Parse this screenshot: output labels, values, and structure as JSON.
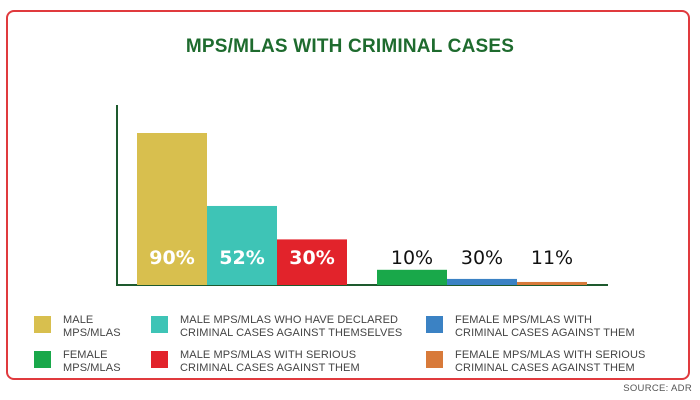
{
  "chart_data": {
    "type": "bar",
    "title": "MPS/MLAS WITH CRIMINAL CASES",
    "ylim": [
      0,
      100
    ],
    "grid": false,
    "legend_position": "bottom",
    "categories": [
      "MALE MPS/MLAS",
      "MALE MPS/MLAS WHO HAVE DECLARED CRIMINAL CASES AGAINST THEMSELVES",
      "MALE MPS/MLAS WITH SERIOUS CRIMINAL CASES AGAINST THEM",
      "FEMALE MPS/MLAS",
      "FEMALE MPS/MLAS WITH CRIMINAL CASES AGAINST THEM",
      "FEMALE MPS/MLAS WITH SERIOUS CRIMINAL CASES AGAINST THEM"
    ],
    "values": [
      90,
      52,
      30,
      10,
      30,
      11
    ],
    "data_labels": [
      "90%",
      "52%",
      "30%",
      "10%",
      "30%",
      "11%"
    ],
    "bar_heights_percent": [
      100,
      52,
      30,
      10,
      4,
      2
    ],
    "colors": [
      "#d8bf4e",
      "#3ec4b6",
      "#e2232b",
      "#19a84a",
      "#3b82c4",
      "#d87a3a"
    ],
    "label_colors": [
      "#ffffff",
      "#ffffff",
      "#ffffff",
      "#111111",
      "#111111",
      "#111111"
    ],
    "legend": [
      {
        "label": "MALE\nMPS/MLAS",
        "color": "#d8bf4e"
      },
      {
        "label": "MALE MPS/MLAS WHO HAVE DECLARED\nCRIMINAL CASES AGAINST THEMSELVES",
        "color": "#3ec4b6"
      },
      {
        "label": "FEMALE MPS/MLAS WITH\nCRIMINAL CASES AGAINST THEM",
        "color": "#3b82c4"
      },
      {
        "label": "FEMALE\nMPS/MLAS",
        "color": "#19a84a"
      },
      {
        "label": "MALE MPS/MLAS WITH SERIOUS\nCRIMINAL CASES AGAINST THEM",
        "color": "#e2232b"
      },
      {
        "label": "FEMALE MPS/MLAS WITH SERIOUS\nCRIMINAL CASES AGAINST THEM",
        "color": "#d87a3a"
      }
    ]
  },
  "source": "SOURCE: ADR",
  "colors": {
    "frame": "#e03a3e",
    "title": "#1e6b2e",
    "axis": "#1e5a2e"
  }
}
